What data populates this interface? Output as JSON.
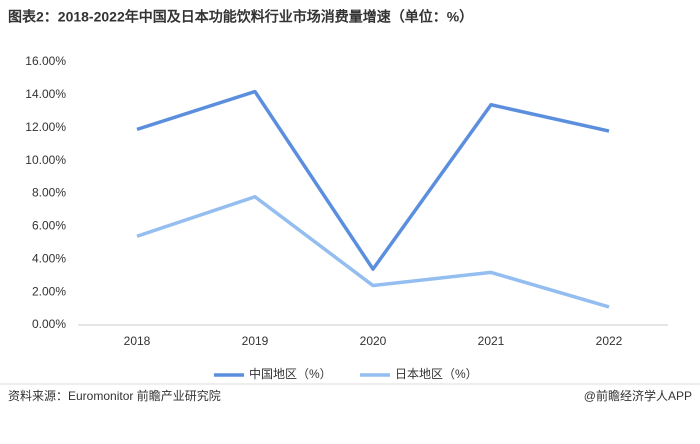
{
  "chart_data": {
    "type": "line",
    "title": "图表2：2018-2022年中国及日本功能饮料行业市场消费量增速（单位：%）",
    "categories": [
      "2018",
      "2019",
      "2020",
      "2021",
      "2022"
    ],
    "series": [
      {
        "name": "中国地区（%）",
        "color": "#5b8fde",
        "values": [
          11.9,
          14.2,
          3.4,
          13.4,
          11.8
        ]
      },
      {
        "name": "日本地区（%）",
        "color": "#94bdf0",
        "values": [
          5.4,
          7.8,
          2.4,
          3.2,
          1.1
        ]
      }
    ],
    "ylim": [
      0,
      16
    ],
    "yticks": [
      {
        "value": 0,
        "label": "0.00%"
      },
      {
        "value": 2,
        "label": "2.00%"
      },
      {
        "value": 4,
        "label": "4.00%"
      },
      {
        "value": 6,
        "label": "6.00%"
      },
      {
        "value": 8,
        "label": "8.00%"
      },
      {
        "value": 10,
        "label": "10.00%"
      },
      {
        "value": 12,
        "label": "12.00%"
      },
      {
        "value": 14,
        "label": "14.00%"
      },
      {
        "value": 16,
        "label": "16.00%"
      }
    ],
    "grid": false,
    "legend": "bottom",
    "source": "资料来源：Euromonitor 前瞻产业研究院",
    "footer_brand": "@前瞻经济学人APP"
  }
}
